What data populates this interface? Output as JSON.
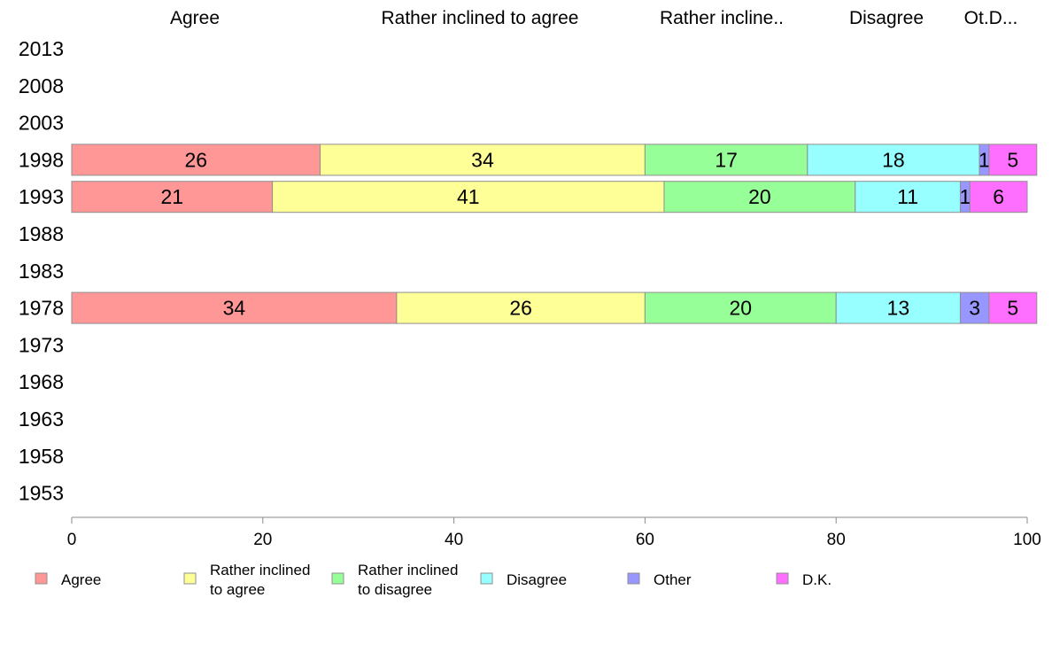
{
  "chart_data": {
    "type": "bar",
    "orientation": "horizontal",
    "stacked": true,
    "categories": [
      "2013",
      "2008",
      "2003",
      "1998",
      "1993",
      "1988",
      "1983",
      "1978",
      "1973",
      "1968",
      "1963",
      "1958",
      "1953"
    ],
    "column_headers": [
      "Agree",
      "Rather inclined to agree",
      "Rather incline..",
      "Disagree",
      "Ot.D..."
    ],
    "xlim": [
      0,
      100
    ],
    "xticks": [
      "0",
      "20",
      "40",
      "60",
      "80",
      "100"
    ],
    "grid": false,
    "legend_position": "bottom",
    "series": [
      {
        "name": "Agree",
        "legend_label": [
          "Agree"
        ],
        "color": "#ff9797",
        "values": [
          null,
          null,
          null,
          26,
          21,
          null,
          null,
          34,
          null,
          null,
          null,
          null,
          null
        ]
      },
      {
        "name": "Rather inclined to agree",
        "legend_label": [
          "Rather inclined",
          "to agree"
        ],
        "color": "#ffff97",
        "values": [
          null,
          null,
          null,
          34,
          41,
          null,
          null,
          26,
          null,
          null,
          null,
          null,
          null
        ]
      },
      {
        "name": "Rather inclined to disagree",
        "legend_label": [
          "Rather inclined",
          "to disagree"
        ],
        "color": "#97ff97",
        "values": [
          null,
          null,
          null,
          17,
          20,
          null,
          null,
          20,
          null,
          null,
          null,
          null,
          null
        ]
      },
      {
        "name": "Disagree",
        "legend_label": [
          "Disagree"
        ],
        "color": "#97ffff",
        "values": [
          null,
          null,
          null,
          18,
          11,
          null,
          null,
          13,
          null,
          null,
          null,
          null,
          null
        ]
      },
      {
        "name": "Other",
        "legend_label": [
          "Other"
        ],
        "color": "#9797ff",
        "values": [
          null,
          null,
          null,
          1,
          1,
          null,
          null,
          3,
          null,
          null,
          null,
          null,
          null
        ]
      },
      {
        "name": "D.K.",
        "legend_label": [
          "D.K."
        ],
        "color": "#ff6fff",
        "values": [
          null,
          null,
          null,
          5,
          6,
          null,
          null,
          5,
          null,
          null,
          null,
          null,
          null
        ]
      }
    ]
  }
}
